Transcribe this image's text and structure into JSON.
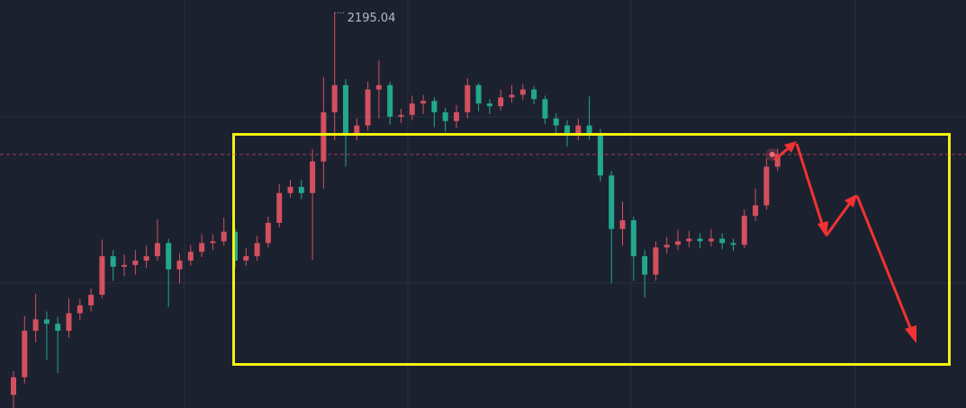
{
  "chart_data": {
    "type": "candlestick",
    "up_color": "#d2505f",
    "down_color": "#22a88c",
    "ylim": [
      2150,
      2196.5
    ],
    "open": [
      2151.5,
      2153.5,
      2158.8,
      2160.1,
      2159.6,
      2158.8,
      2160.8,
      2161.7,
      2162.9,
      2167.3,
      2166.1,
      2166.3,
      2166.8,
      2167.3,
      2168.8,
      2165.8,
      2166.8,
      2167.8,
      2168.8,
      2169.0,
      2170.1,
      2166.8,
      2167.3,
      2168.8,
      2171.1,
      2174.5,
      2175.2,
      2174.5,
      2178.1,
      2183.7,
      2186.8,
      2181.3,
      2182.2,
      2186.3,
      2186.8,
      2183.2,
      2183.4,
      2184.7,
      2185.0,
      2183.7,
      2182.7,
      2183.7,
      2186.8,
      2184.7,
      2184.4,
      2185.4,
      2185.7,
      2186.3,
      2185.2,
      2183.0,
      2182.2,
      2181.1,
      2182.2,
      2181.3,
      2176.5,
      2170.4,
      2171.4,
      2167.3,
      2165.2,
      2168.3,
      2168.6,
      2169.0,
      2169.3,
      2169.0,
      2169.3,
      2168.8,
      2168.6,
      2171.9,
      2173.1,
      2177.5
    ],
    "high": [
      2154.2,
      2160.5,
      2163.0,
      2161.0,
      2160.4,
      2162.5,
      2162.4,
      2163.6,
      2169.2,
      2168.0,
      2167.5,
      2168.0,
      2168.5,
      2171.5,
      2169.3,
      2167.6,
      2168.6,
      2169.8,
      2169.8,
      2171.7,
      2170.5,
      2168.2,
      2169.6,
      2171.8,
      2175.5,
      2176.0,
      2176.0,
      2179.5,
      2187.7,
      2195.04,
      2187.5,
      2183.0,
      2187.2,
      2189.6,
      2187.2,
      2184.1,
      2185.6,
      2185.7,
      2185.4,
      2184.2,
      2184.5,
      2187.6,
      2187.0,
      2185.2,
      2186.3,
      2186.8,
      2186.9,
      2186.7,
      2185.6,
      2183.6,
      2182.8,
      2183.0,
      2185.5,
      2181.8,
      2177.0,
      2173.5,
      2171.8,
      2168.0,
      2169.0,
      2169.5,
      2170.3,
      2170.2,
      2169.9,
      2170.4,
      2169.9,
      2169.3,
      2172.6,
      2175.0,
      2178.5,
      2179.6
    ],
    "low": [
      2150.0,
      2152.8,
      2157.5,
      2155.5,
      2154.0,
      2158.0,
      2160.0,
      2161.0,
      2162.5,
      2164.5,
      2165.0,
      2165.2,
      2166.0,
      2166.8,
      2161.5,
      2164.2,
      2166.2,
      2167.2,
      2168.0,
      2168.5,
      2166.0,
      2166.2,
      2166.8,
      2168.3,
      2170.6,
      2174.0,
      2173.8,
      2166.9,
      2175.0,
      2180.5,
      2177.5,
      2180.5,
      2181.6,
      2183.0,
      2182.3,
      2182.5,
      2182.8,
      2183.5,
      2182.0,
      2181.5,
      2181.9,
      2183.0,
      2183.8,
      2183.5,
      2183.9,
      2184.8,
      2185.1,
      2184.6,
      2182.4,
      2181.0,
      2179.8,
      2180.5,
      2180.6,
      2175.8,
      2164.2,
      2168.5,
      2164.5,
      2162.6,
      2164.5,
      2167.6,
      2168.0,
      2168.3,
      2168.2,
      2168.4,
      2168.1,
      2167.9,
      2168.2,
      2171.3,
      2172.6,
      2177.0
    ],
    "close": [
      2153.5,
      2158.8,
      2160.1,
      2159.6,
      2158.8,
      2160.8,
      2161.7,
      2162.9,
      2167.3,
      2166.1,
      2166.3,
      2166.8,
      2167.3,
      2168.8,
      2165.8,
      2166.8,
      2167.8,
      2168.8,
      2169.0,
      2170.1,
      2166.8,
      2167.3,
      2168.8,
      2171.1,
      2174.5,
      2175.2,
      2174.5,
      2178.1,
      2183.7,
      2186.8,
      2181.3,
      2182.2,
      2186.3,
      2186.8,
      2183.2,
      2183.4,
      2184.7,
      2185.0,
      2183.7,
      2182.7,
      2183.7,
      2186.8,
      2184.7,
      2184.4,
      2185.4,
      2185.7,
      2186.3,
      2185.2,
      2183.0,
      2182.2,
      2181.1,
      2182.2,
      2181.3,
      2176.5,
      2170.4,
      2171.4,
      2167.3,
      2165.2,
      2168.3,
      2168.6,
      2169.0,
      2169.3,
      2169.0,
      2169.3,
      2168.8,
      2168.6,
      2171.9,
      2173.1,
      2177.5,
      2178.9
    ]
  }
}
